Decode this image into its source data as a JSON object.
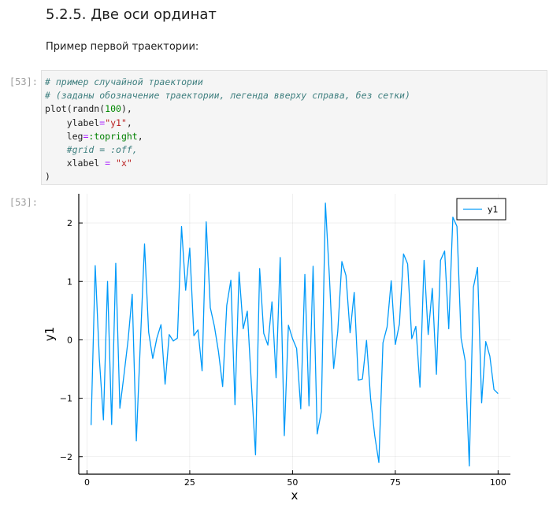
{
  "heading": "5.2.5. Две оси ординат",
  "paragraph": "Пример первой траектории:",
  "cell": {
    "in_prompt": "[53]:",
    "out_prompt": "[53]:"
  },
  "code": {
    "line1": "# пример случайной траектории",
    "line2": "# (заданы обозначение траектории, легенда вверху справа, без сетки)",
    "line3_a": "plot(randn(",
    "line3_num": "100",
    "line3_b": "),",
    "line4_a": "    ylabel",
    "line4_eq": "=",
    "line4_str": "\"y1\"",
    "line4_b": ",",
    "line5_a": "    leg",
    "line5_eq": "=",
    "line5_sym": ":topright",
    "line5_b": ",",
    "line6": "    #grid = :off,",
    "line7_a": "    xlabel ",
    "line7_eq": "=",
    "line7_str": " \"x\"",
    "line8": ")"
  },
  "chart_data": {
    "type": "line",
    "xlabel": "x",
    "ylabel": "y1",
    "xlim": [
      -2,
      103
    ],
    "ylim": [
      -2.3,
      2.5
    ],
    "xticks": [
      0,
      25,
      50,
      75,
      100
    ],
    "yticks": [
      -2,
      -1,
      0,
      1,
      2
    ],
    "grid": true,
    "legend_position": "top-right",
    "line_color": "#009af9",
    "series": [
      {
        "name": "y1",
        "x": [
          1,
          2,
          3,
          4,
          5,
          6,
          7,
          8,
          9,
          10,
          11,
          12,
          13,
          14,
          15,
          16,
          17,
          18,
          19,
          20,
          21,
          22,
          23,
          24,
          25,
          26,
          27,
          28,
          29,
          30,
          31,
          32,
          33,
          34,
          35,
          36,
          37,
          38,
          39,
          40,
          41,
          42,
          43,
          44,
          45,
          46,
          47,
          48,
          49,
          50,
          51,
          52,
          53,
          54,
          55,
          56,
          57,
          58,
          59,
          60,
          61,
          62,
          63,
          64,
          65,
          66,
          67,
          68,
          69,
          70,
          71,
          72,
          73,
          74,
          75,
          76,
          77,
          78,
          79,
          80,
          81,
          82,
          83,
          84,
          85,
          86,
          87,
          88,
          89,
          90,
          91,
          92,
          93,
          94,
          95,
          96,
          97,
          98,
          99,
          100
        ],
        "values": [
          -1.46,
          1.27,
          -0.32,
          -1.37,
          1.0,
          -1.45,
          1.31,
          -1.17,
          -0.6,
          0.0,
          0.78,
          -1.73,
          -0.02,
          1.64,
          0.13,
          -0.32,
          0.03,
          0.26,
          -0.76,
          0.09,
          -0.02,
          0.03,
          1.94,
          0.85,
          1.57,
          0.07,
          0.17,
          -0.53,
          2.02,
          0.55,
          0.23,
          -0.21,
          -0.8,
          0.59,
          1.02,
          -1.11,
          1.16,
          0.19,
          0.49,
          -0.77,
          -1.97,
          1.22,
          0.11,
          -0.09,
          0.65,
          -0.65,
          1.41,
          -1.64,
          0.25,
          0.02,
          -0.15,
          -1.18,
          1.12,
          -1.13,
          1.26,
          -1.61,
          -1.23,
          2.34,
          1.04,
          -0.49,
          0.14,
          1.34,
          1.1,
          0.12,
          0.81,
          -0.69,
          -0.67,
          -0.01,
          -1.01,
          -1.64,
          -2.1,
          -0.05,
          0.22,
          1.01,
          -0.08,
          0.27,
          1.47,
          1.3,
          0.02,
          0.23,
          -0.81,
          1.36,
          0.09,
          0.88,
          -0.59,
          1.36,
          1.52,
          0.19,
          2.1,
          1.94,
          0.03,
          -0.36,
          -2.16,
          0.9,
          1.24,
          -1.08,
          -0.03,
          -0.28,
          -0.85,
          -0.92
        ]
      }
    ]
  }
}
